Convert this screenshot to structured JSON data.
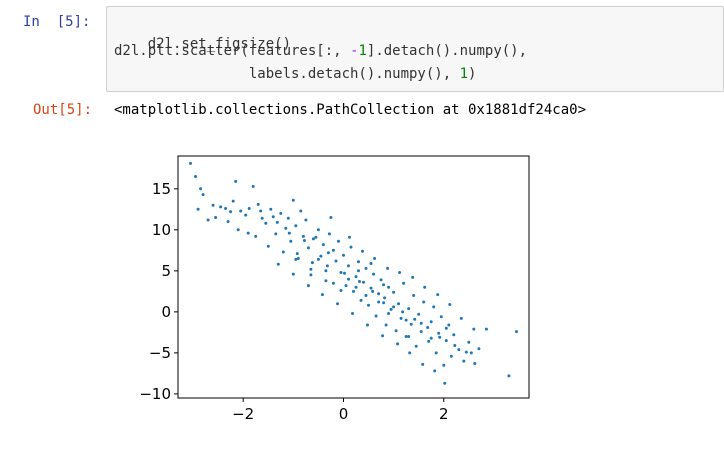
{
  "cell": {
    "in_prompt": "In  [5]:",
    "out_prompt": "Out[5]:",
    "code_lines": [
      {
        "before": "d2l.set_figsize()",
        "mid": "",
        "num": "",
        "after": ""
      },
      {
        "before": "d2l.plt.scatter(features[:, ",
        "mid": "-",
        "num": "1",
        "after": "].detach().numpy(),"
      },
      {
        "before": "                labels.detach().numpy(), ",
        "mid": "",
        "num": "1",
        "after": ")"
      }
    ],
    "output_text": "<matplotlib.collections.PathCollection at 0x1881df24ca0>"
  },
  "chart_data": {
    "type": "scatter",
    "xlim": [
      -3.3,
      3.7
    ],
    "ylim": [
      -10.5,
      19
    ],
    "xticks": [
      -2,
      0,
      2
    ],
    "xtick_labels": [
      "−2",
      "0",
      "2"
    ],
    "yticks": [
      -10,
      -5,
      0,
      5,
      10,
      15
    ],
    "ytick_labels": [
      "−10",
      "−5",
      "0",
      "5",
      "10",
      "15"
    ],
    "marker_color": "#1f77b4",
    "grid": false,
    "title": "",
    "xlabel": "",
    "ylabel": "",
    "points": [
      [
        -3.05,
        18.1
      ],
      [
        -2.95,
        16.5
      ],
      [
        -2.85,
        15.0
      ],
      [
        -2.9,
        12.5
      ],
      [
        -2.8,
        14.3
      ],
      [
        -2.6,
        13.0
      ],
      [
        -2.55,
        11.5
      ],
      [
        -2.45,
        12.8
      ],
      [
        -2.3,
        11.0
      ],
      [
        -2.25,
        12.2
      ],
      [
        -2.15,
        15.9
      ],
      [
        -2.1,
        10.0
      ],
      [
        -1.95,
        11.8
      ],
      [
        -1.8,
        15.3
      ],
      [
        -1.75,
        9.2
      ],
      [
        -1.65,
        12.3
      ],
      [
        -1.55,
        10.8
      ],
      [
        -1.5,
        8.0
      ],
      [
        -1.4,
        11.6
      ],
      [
        -1.35,
        9.5
      ],
      [
        -1.25,
        12.0
      ],
      [
        -1.2,
        7.3
      ],
      [
        -1.15,
        10.2
      ],
      [
        -1.05,
        8.6
      ],
      [
        -1.0,
        13.6
      ],
      [
        -0.95,
        10.5
      ],
      [
        -0.9,
        6.5
      ],
      [
        -0.8,
        9.2
      ],
      [
        -0.75,
        11.2
      ],
      [
        -0.7,
        7.8
      ],
      [
        -0.65,
        4.5
      ],
      [
        -0.6,
        8.9
      ],
      [
        -0.5,
        10.0
      ],
      [
        -0.45,
        6.8
      ],
      [
        -0.4,
        8.2
      ],
      [
        -0.35,
        5.0
      ],
      [
        -0.3,
        7.2
      ],
      [
        -0.25,
        11.5
      ],
      [
        -0.2,
        3.5
      ],
      [
        -0.15,
        6.2
      ],
      [
        -0.1,
        8.6
      ],
      [
        -0.05,
        4.8
      ],
      [
        0.0,
        6.9
      ],
      [
        0.05,
        3.2
      ],
      [
        0.1,
        5.6
      ],
      [
        0.15,
        7.9
      ],
      [
        0.2,
        2.5
      ],
      [
        0.25,
        4.3
      ],
      [
        0.3,
        6.1
      ],
      [
        0.35,
        1.4
      ],
      [
        0.4,
        3.6
      ],
      [
        0.45,
        5.3
      ],
      [
        0.5,
        0.8
      ],
      [
        0.55,
        2.9
      ],
      [
        0.6,
        4.6
      ],
      [
        0.65,
        -0.5
      ],
      [
        0.7,
        2.2
      ],
      [
        0.75,
        3.9
      ],
      [
        0.8,
        1.1
      ],
      [
        0.85,
        -1.6
      ],
      [
        0.9,
        3.0
      ],
      [
        0.95,
        0.3
      ],
      [
        1.0,
        2.4
      ],
      [
        1.05,
        -2.3
      ],
      [
        1.1,
        1.0
      ],
      [
        1.15,
        -0.8
      ],
      [
        1.2,
        3.5
      ],
      [
        1.25,
        -3.0
      ],
      [
        1.3,
        0.4
      ],
      [
        1.35,
        -1.5
      ],
      [
        1.4,
        2.0
      ],
      [
        1.45,
        -4.2
      ],
      [
        1.5,
        -0.3
      ],
      [
        1.55,
        -2.4
      ],
      [
        1.6,
        1.2
      ],
      [
        1.7,
        -3.6
      ],
      [
        1.75,
        -1.2
      ],
      [
        1.8,
        0.6
      ],
      [
        1.85,
        -5.0
      ],
      [
        1.9,
        -2.6
      ],
      [
        1.95,
        -0.6
      ],
      [
        2.0,
        -6.5
      ],
      [
        2.05,
        -3.5
      ],
      [
        2.1,
        -1.6
      ],
      [
        2.15,
        -5.4
      ],
      [
        2.2,
        -2.8
      ],
      [
        2.3,
        -4.6
      ],
      [
        2.35,
        -0.8
      ],
      [
        2.4,
        -6.0
      ],
      [
        2.5,
        -3.7
      ],
      [
        2.55,
        -5.0
      ],
      [
        2.6,
        -2.1
      ],
      [
        2.7,
        -4.5
      ],
      [
        2.85,
        -2.1
      ],
      [
        3.3,
        -7.8
      ],
      [
        3.45,
        -2.4
      ],
      [
        -2.7,
        11.2
      ],
      [
        -2.2,
        13.5
      ],
      [
        -1.9,
        9.6
      ],
      [
        -1.7,
        13.1
      ],
      [
        -1.45,
        12.5
      ],
      [
        -1.1,
        11.4
      ],
      [
        -0.85,
        12.3
      ],
      [
        -0.55,
        9.1
      ],
      [
        -0.28,
        9.5
      ],
      [
        0.12,
        9.1
      ],
      [
        0.38,
        7.4
      ],
      [
        0.62,
        6.5
      ],
      [
        0.88,
        5.3
      ],
      [
        1.12,
        4.8
      ],
      [
        1.38,
        4.2
      ],
      [
        1.62,
        3.0
      ],
      [
        1.88,
        2.1
      ],
      [
        2.12,
        0.9
      ],
      [
        -1.3,
        5.8
      ],
      [
        -1.0,
        4.6
      ],
      [
        -0.7,
        3.2
      ],
      [
        -0.42,
        2.1
      ],
      [
        -0.12,
        1.0
      ],
      [
        0.18,
        -0.2
      ],
      [
        0.48,
        -1.6
      ],
      [
        0.78,
        -2.9
      ],
      [
        1.08,
        -3.9
      ],
      [
        1.32,
        -5.0
      ],
      [
        1.58,
        -6.4
      ],
      [
        1.82,
        -7.2
      ],
      [
        -0.92,
        7.1
      ],
      [
        -0.62,
        6.0
      ],
      [
        -0.32,
        5.6
      ],
      [
        0.02,
        4.7
      ],
      [
        0.32,
        3.7
      ],
      [
        0.58,
        2.5
      ],
      [
        0.82,
        1.7
      ],
      [
        1.18,
        0.0
      ],
      [
        1.42,
        -0.9
      ],
      [
        1.68,
        -1.9
      ],
      [
        1.92,
        -3.1
      ],
      [
        2.22,
        -4.1
      ],
      [
        2.45,
        -4.9
      ],
      [
        2.62,
        -6.3
      ],
      [
        2.02,
        -8.7
      ],
      [
        1.3,
        -3.0
      ],
      [
        0.9,
        -0.2
      ],
      [
        -0.2,
        7.5
      ],
      [
        -0.5,
        6.4
      ],
      [
        -0.78,
        8.7
      ],
      [
        -1.08,
        9.6
      ],
      [
        -1.32,
        10.9
      ],
      [
        -1.62,
        11.4
      ],
      [
        -1.88,
        12.6
      ],
      [
        -2.05,
        12.3
      ],
      [
        -2.35,
        12.6
      ],
      [
        0.25,
        3.0
      ],
      [
        0.45,
        2.0
      ],
      [
        0.7,
        1.2
      ],
      [
        1.0,
        0.6
      ],
      [
        1.25,
        -1.0
      ],
      [
        1.55,
        -1.4
      ],
      [
        1.75,
        -3.2
      ],
      [
        2.05,
        -2.0
      ],
      [
        -0.05,
        2.6
      ],
      [
        -0.35,
        3.8
      ],
      [
        -0.65,
        5.2
      ],
      [
        -0.95,
        6.4
      ],
      [
        0.1,
        4.0
      ],
      [
        0.3,
        5.0
      ],
      [
        0.55,
        5.9
      ],
      [
        0.8,
        3.3
      ]
    ]
  }
}
